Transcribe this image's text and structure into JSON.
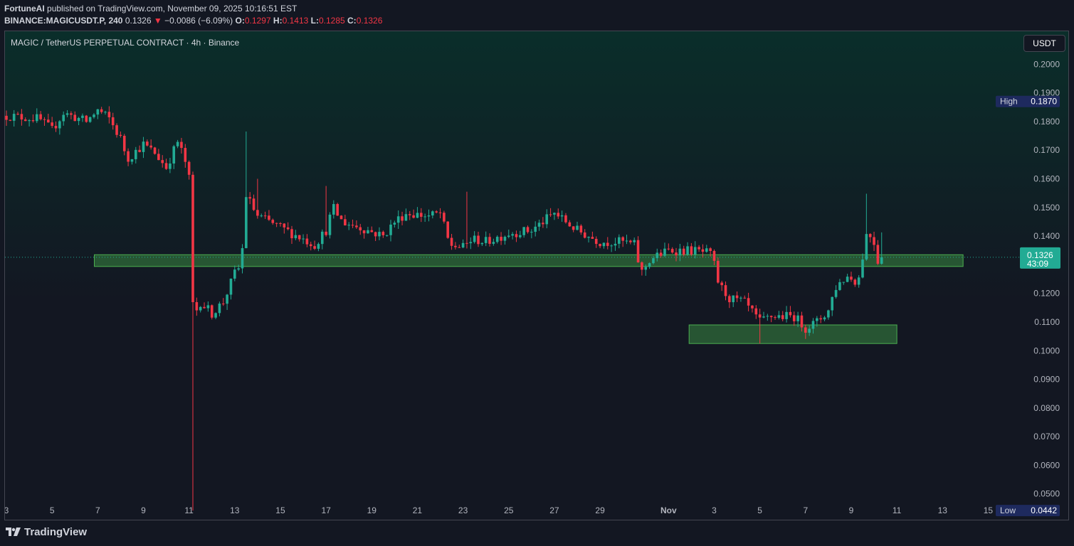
{
  "header": {
    "author": "FortuneAI",
    "published_text": "published on TradingView.com, November 09, 2025 10:16:51 EST",
    "symbol": "BINANCE:MAGICUSDT.P, 240",
    "last": "0.1326",
    "change_arrow": "▼",
    "change": "−0.0086 (−6.09%)",
    "o_label": "O:",
    "o": "0.1297",
    "h_label": "H:",
    "h": "0.1413",
    "l_label": "L:",
    "l": "0.1285",
    "c_label": "C:",
    "c": "0.1326"
  },
  "chart_title": "MAGIC / TetherUS PERPETUAL CONTRACT · 4h · Binance",
  "currency_button": "USDT",
  "footer": {
    "logo_text": "TradingView",
    "logo_icon": "tradingview-logo-icon"
  },
  "colors": {
    "up": "#22ab94",
    "down": "#f23645",
    "zone_fill": "#2f6b3a",
    "zone_border": "#4caf50",
    "bg_top": "#0a2e2a",
    "bg_bottom": "#131722"
  },
  "chart_data": {
    "type": "candlestick",
    "interval": "4h",
    "ylim": [
      0.041,
      0.2115
    ],
    "yticks": [
      "0.2000",
      "0.1900",
      "0.1800",
      "0.1700",
      "0.1600",
      "0.1500",
      "0.1400",
      "0.1200",
      "0.1100",
      "0.1000",
      "0.0900",
      "0.0800",
      "0.0700",
      "0.0600",
      "0.0500"
    ],
    "x_axis_range": [
      "Oct 3",
      "Nov 15"
    ],
    "xticks": [
      {
        "label": "3",
        "day": 0
      },
      {
        "label": "5",
        "day": 2
      },
      {
        "label": "7",
        "day": 4
      },
      {
        "label": "9",
        "day": 6
      },
      {
        "label": "11",
        "day": 8
      },
      {
        "label": "13",
        "day": 10
      },
      {
        "label": "15",
        "day": 12
      },
      {
        "label": "17",
        "day": 14
      },
      {
        "label": "19",
        "day": 16
      },
      {
        "label": "21",
        "day": 18
      },
      {
        "label": "23",
        "day": 20
      },
      {
        "label": "25",
        "day": 22
      },
      {
        "label": "27",
        "day": 24
      },
      {
        "label": "29",
        "day": 26
      },
      {
        "label": "Nov",
        "day": 29
      },
      {
        "label": "3",
        "day": 31
      },
      {
        "label": "5",
        "day": 33
      },
      {
        "label": "7",
        "day": 35
      },
      {
        "label": "9",
        "day": 37
      },
      {
        "label": "11",
        "day": 39
      },
      {
        "label": "13",
        "day": 41
      },
      {
        "label": "15",
        "day": 43
      }
    ],
    "high_marker": {
      "label": "High",
      "value": "0.1870",
      "price": 0.187
    },
    "low_marker": {
      "label": "Low",
      "value": "0.0442",
      "price": 0.0442
    },
    "last_price": {
      "value": "0.1326",
      "countdown": "43:09",
      "price": 0.1326
    },
    "zones": [
      {
        "day_start": 3.85,
        "day_end": 41.9,
        "price_top": 0.1335,
        "price_bottom": 0.1294
      },
      {
        "day_start": 29.9,
        "day_end": 39.0,
        "price_top": 0.109,
        "price_bottom": 0.1025
      }
    ],
    "anchors": [
      [
        0,
        0.182
      ],
      [
        1.4,
        0.181
      ],
      [
        2,
        0.177
      ],
      [
        2.5,
        0.183
      ],
      [
        3.5,
        0.18
      ],
      [
        4,
        0.184
      ],
      [
        4.5,
        0.181
      ],
      [
        5,
        0.174
      ],
      [
        5.3,
        0.167
      ],
      [
        6,
        0.172
      ],
      [
        6.5,
        0.169
      ],
      [
        7,
        0.164
      ],
      [
        7.5,
        0.173
      ],
      [
        7.8,
        0.167
      ],
      [
        8,
        0.16
      ],
      [
        8.1,
        0.125
      ],
      [
        8.2,
        0.112
      ],
      [
        8.5,
        0.117
      ],
      [
        9,
        0.113
      ],
      [
        9.5,
        0.117
      ],
      [
        10,
        0.127
      ],
      [
        10.3,
        0.13
      ],
      [
        10.45,
        0.155
      ],
      [
        11,
        0.147
      ],
      [
        11.5,
        0.145
      ],
      [
        12.5,
        0.141
      ],
      [
        13.5,
        0.137
      ],
      [
        14,
        0.142
      ],
      [
        14.3,
        0.15
      ],
      [
        14.7,
        0.145
      ],
      [
        15.5,
        0.143
      ],
      [
        16.5,
        0.14
      ],
      [
        17,
        0.145
      ],
      [
        17.5,
        0.148
      ],
      [
        18.5,
        0.147
      ],
      [
        19,
        0.148
      ],
      [
        19.4,
        0.137
      ],
      [
        20,
        0.136
      ],
      [
        20.4,
        0.139
      ],
      [
        21,
        0.138
      ],
      [
        22,
        0.141
      ],
      [
        23,
        0.142
      ],
      [
        24,
        0.148
      ],
      [
        25,
        0.142
      ],
      [
        26,
        0.138
      ],
      [
        27,
        0.138
      ],
      [
        27.5,
        0.137
      ],
      [
        27.8,
        0.127
      ],
      [
        28.2,
        0.132
      ],
      [
        29,
        0.135
      ],
      [
        30,
        0.135
      ],
      [
        30.8,
        0.134
      ],
      [
        31,
        0.13
      ],
      [
        31.2,
        0.123
      ],
      [
        31.7,
        0.118
      ],
      [
        32.3,
        0.117
      ],
      [
        33,
        0.11
      ],
      [
        33.5,
        0.112
      ],
      [
        34.5,
        0.112
      ],
      [
        35,
        0.108
      ],
      [
        35.5,
        0.11
      ],
      [
        36,
        0.114
      ],
      [
        36.3,
        0.122
      ],
      [
        36.8,
        0.126
      ],
      [
        37.3,
        0.124
      ],
      [
        37.7,
        0.142
      ],
      [
        38,
        0.138
      ],
      [
        38.2,
        0.13
      ],
      [
        38.4,
        0.1326
      ]
    ],
    "spikes": [
      {
        "day": 8.1,
        "low": 0.0442
      },
      {
        "day": 10.45,
        "high": 0.1765
      },
      {
        "day": 11,
        "high": 0.16
      },
      {
        "day": 14.05,
        "high": 0.1575
      },
      {
        "day": 20.1,
        "high": 0.1555
      },
      {
        "day": 33.0,
        "low": 0.1025
      },
      {
        "day": 37.6,
        "high": 0.1548
      },
      {
        "day": 38.3,
        "high": 0.1413
      }
    ]
  }
}
